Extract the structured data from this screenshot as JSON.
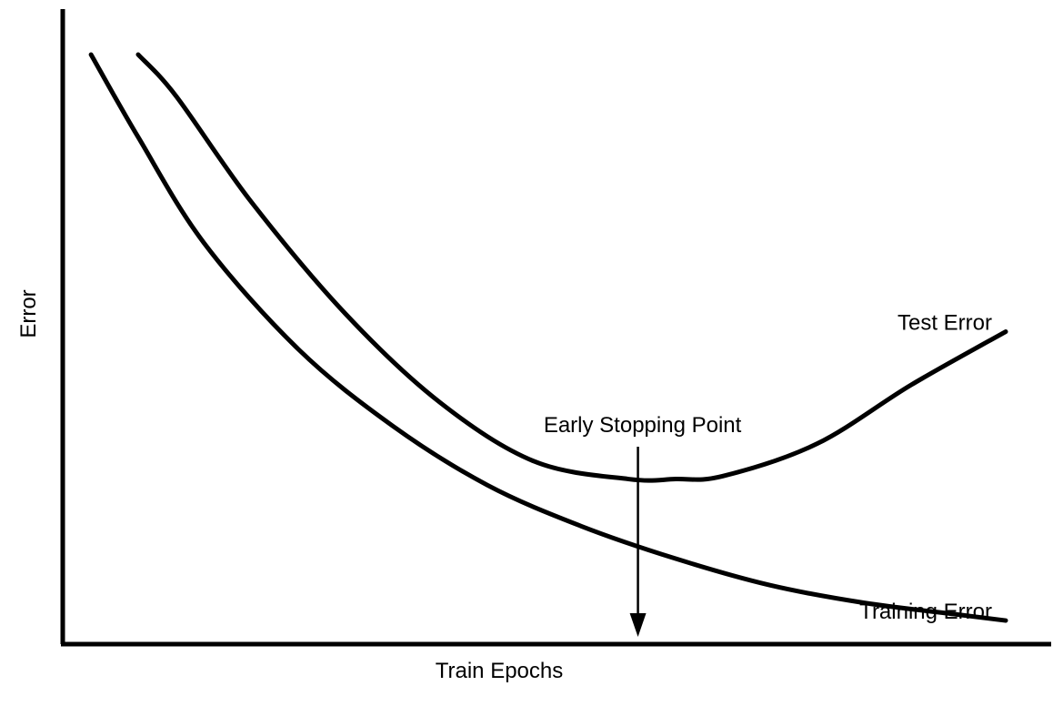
{
  "chart_data": {
    "type": "line",
    "xlabel": "Train Epochs",
    "ylabel": "Error",
    "xlim": [
      0,
      100
    ],
    "ylim": [
      0,
      100
    ],
    "ticks": "none",
    "grid": false,
    "series": [
      {
        "name": "Test Error",
        "x": [
          8,
          12,
          20,
          30,
          40,
          50,
          60,
          65,
          70,
          80,
          90,
          100
        ],
        "y": [
          100,
          93,
          75,
          56,
          41,
          31,
          28,
          28,
          28.5,
          34,
          44,
          53
        ],
        "label_position": "end-above"
      },
      {
        "name": "Training Error",
        "x": [
          3,
          8,
          15,
          25,
          35,
          45,
          55,
          65,
          75,
          85,
          95,
          100
        ],
        "y": [
          100,
          86,
          68,
          50,
          37,
          27,
          20,
          14.5,
          10,
          7,
          5,
          4
        ],
        "label_position": "end-above"
      }
    ],
    "annotations": [
      {
        "text": "Early Stopping Point",
        "x": 61,
        "type": "arrow-down-to-x-axis"
      }
    ]
  }
}
